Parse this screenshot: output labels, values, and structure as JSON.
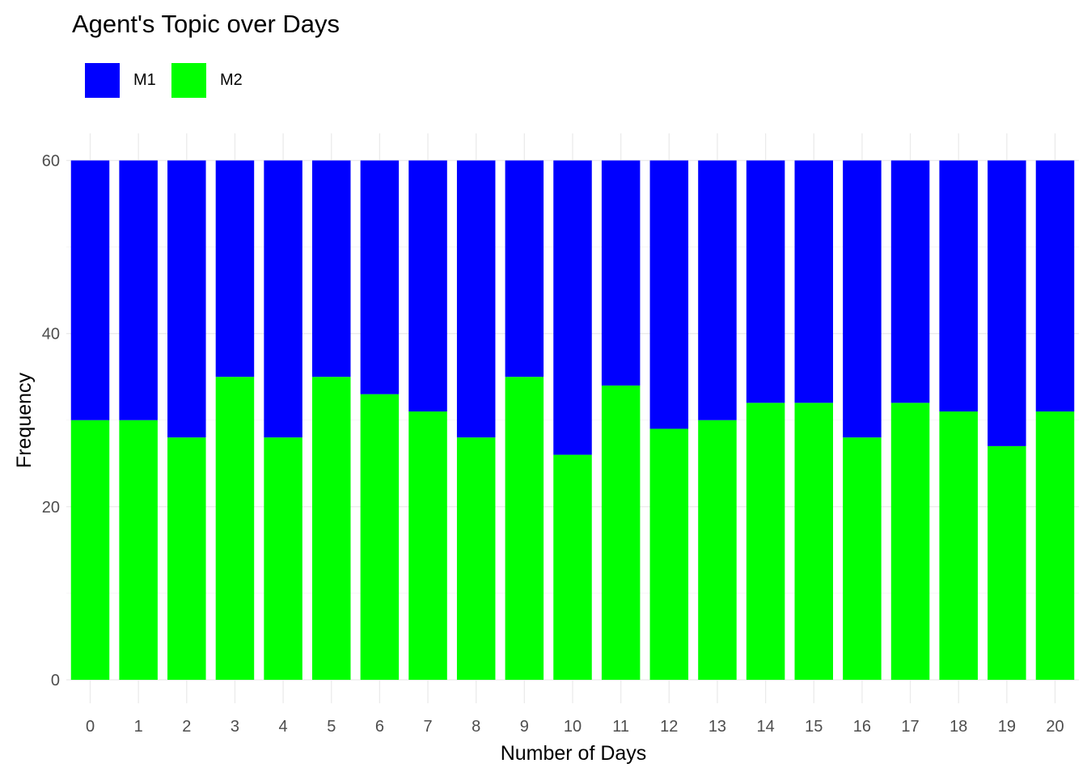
{
  "chart_data": {
    "type": "bar",
    "stacked": true,
    "title": "Agent's Topic over Days",
    "xlabel": "Number of Days",
    "ylabel": "Frequency",
    "categories": [
      "0",
      "1",
      "2",
      "3",
      "4",
      "5",
      "6",
      "7",
      "8",
      "9",
      "10",
      "11",
      "12",
      "13",
      "14",
      "15",
      "16",
      "17",
      "18",
      "19",
      "20"
    ],
    "series": [
      {
        "name": "M2",
        "color": "#00FF00",
        "values": [
          30,
          30,
          28,
          35,
          28,
          35,
          33,
          31,
          28,
          35,
          26,
          34,
          29,
          30,
          32,
          32,
          28,
          32,
          31,
          27,
          31
        ]
      },
      {
        "name": "M1",
        "color": "#0000FF",
        "values": [
          30,
          30,
          32,
          25,
          32,
          25,
          27,
          29,
          32,
          25,
          34,
          26,
          31,
          30,
          28,
          28,
          32,
          28,
          29,
          33,
          29
        ]
      }
    ],
    "legend_order": [
      "M1",
      "M2"
    ],
    "ylim": [
      0,
      60
    ],
    "yticks": [
      0,
      20,
      40,
      60
    ],
    "grid": true,
    "legend_position": "top-left"
  }
}
